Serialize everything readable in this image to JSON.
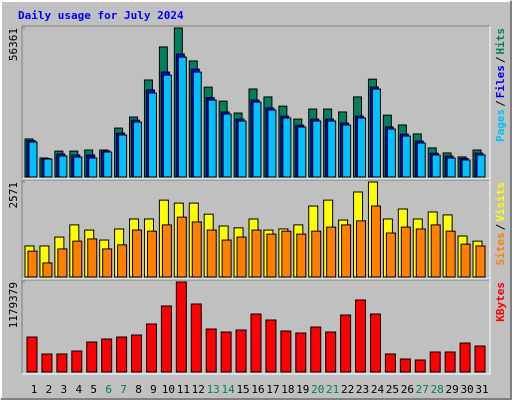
{
  "chart_data": [
    {
      "type": "bar",
      "title": "Daily usage for July 2024",
      "ylim": [
        0,
        56361
      ],
      "yticks": [
        56361
      ],
      "legend_separator": "/",
      "series": [
        {
          "name": "Hits",
          "color": "#00805c",
          "values": [
            14400,
            7200,
            9800,
            9800,
            10200,
            10200,
            18500,
            22700,
            36700,
            49200,
            56361,
            43900,
            34000,
            28700,
            24200,
            33300,
            30300,
            26800,
            21900,
            25700,
            25700,
            24600,
            30300,
            37000,
            23400,
            19700,
            16300,
            11000,
            9100,
            7600,
            10200
          ]
        },
        {
          "name": "Files",
          "color": "#0000ff",
          "values": [
            13800,
            7000,
            8700,
            8300,
            8300,
            9900,
            16600,
            21500,
            32900,
            39700,
            46500,
            40800,
            30000,
            24600,
            21900,
            29100,
            26100,
            23000,
            19600,
            21900,
            21900,
            20400,
            23000,
            34000,
            18900,
            16200,
            13600,
            9000,
            7900,
            7000,
            9000
          ]
        },
        {
          "name": "Pages",
          "color": "#00c0ff",
          "values": [
            13230,
            6800,
            7940,
            7560,
            7180,
            9450,
            15880,
            20790,
            31750,
            38560,
            45360,
            39690,
            29110,
            23810,
            21170,
            28350,
            25330,
            22300,
            18900,
            21170,
            21170,
            19660,
            22300,
            33260,
            18140,
            15500,
            12850,
            8320,
            7180,
            6430,
            8320
          ]
        }
      ]
    },
    {
      "type": "bar",
      "ylim": [
        0,
        2571
      ],
      "yticks": [
        2571
      ],
      "legend_separator": "/",
      "series": [
        {
          "name": "Visits",
          "color": "#ffff00",
          "values": [
            840,
            840,
            1080,
            1410,
            1270,
            1000,
            1300,
            1570,
            1570,
            2080,
            2000,
            2000,
            1700,
            1380,
            1330,
            1570,
            1270,
            1300,
            1410,
            1920,
            2080,
            1540,
            2300,
            2571,
            1570,
            1840,
            1570,
            1760,
            1680,
            1110,
            970
          ]
        },
        {
          "name": "Sites",
          "color": "#ff8000",
          "values": [
            700,
            380,
            760,
            970,
            1030,
            760,
            870,
            1270,
            1240,
            1410,
            1620,
            1490,
            1270,
            1000,
            1080,
            1270,
            1160,
            1240,
            1160,
            1240,
            1350,
            1410,
            1520,
            1920,
            1190,
            1350,
            1300,
            1410,
            1240,
            890,
            840
          ]
        }
      ]
    },
    {
      "type": "bar",
      "ylim": [
        0,
        1179379
      ],
      "yticks": [
        1179379
      ],
      "categories": [
        "1",
        "2",
        "3",
        "4",
        "5",
        "6",
        "7",
        "8",
        "9",
        "10",
        "11",
        "12",
        "13",
        "14",
        "15",
        "16",
        "17",
        "18",
        "19",
        "20",
        "21",
        "22",
        "23",
        "24",
        "25",
        "26",
        "27",
        "28",
        "29",
        "30",
        "31"
      ],
      "category_colors": [
        "#000000",
        "#000000",
        "#000000",
        "#000000",
        "#000000",
        "#00805c",
        "#00805c",
        "#000000",
        "#000000",
        "#000000",
        "#000000",
        "#000000",
        "#00805c",
        "#00805c",
        "#000000",
        "#000000",
        "#000000",
        "#000000",
        "#000000",
        "#00805c",
        "#00805c",
        "#000000",
        "#000000",
        "#000000",
        "#000000",
        "#000000",
        "#00805c",
        "#00805c",
        "#000000",
        "#000000",
        "#000000"
      ],
      "series": [
        {
          "name": "KBytes",
          "color": "#ff0000",
          "values": [
            458600,
            235900,
            235900,
            275200,
            393100,
            432400,
            458600,
            484800,
            629000,
            864900,
            1179379,
            891100,
            563500,
            524200,
            550400,
            760000,
            681400,
            537300,
            511100,
            589700,
            524200,
            746900,
            943500,
            760000,
            235900,
            170400,
            157200,
            262100,
            262100,
            380000,
            340700
          ]
        }
      ]
    }
  ]
}
